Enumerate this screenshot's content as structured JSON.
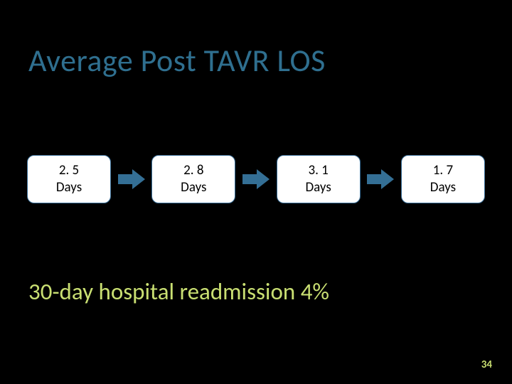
{
  "title": {
    "text": "Average Post TAVR LOS",
    "color": "#2f6f8f",
    "fontsize": 44
  },
  "flow": {
    "node_bg": "#ffffff",
    "node_border": "#3a6f99",
    "node_text_color": "#000000",
    "arrow_color": "#346f95",
    "nodes": [
      {
        "value": "2. 5",
        "unit": "Days"
      },
      {
        "value": "2. 8",
        "unit": "Days"
      },
      {
        "value": "3. 1",
        "unit": "Days"
      },
      {
        "value": "1. 7",
        "unit": "Days"
      }
    ]
  },
  "subtitle": {
    "text": "30-day hospital readmission 4%",
    "color": "#c9df72",
    "fontsize": 33
  },
  "page_number": {
    "text": "34",
    "color": "#c9df72"
  },
  "background_color": "#000000"
}
